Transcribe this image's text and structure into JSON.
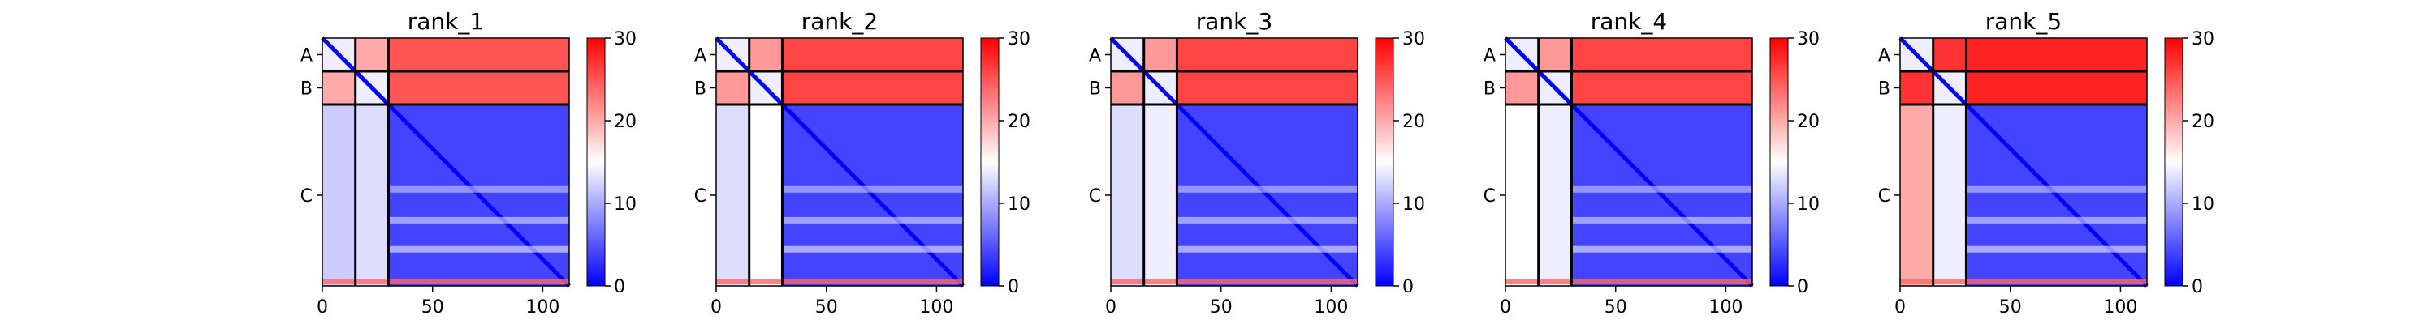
{
  "chart_data": {
    "type": "heatmap",
    "color_scale": {
      "min": 0,
      "max": 30,
      "low": "#0000ff",
      "mid": "#ffffff",
      "high": "#ff0000",
      "ticks": [
        "0",
        "10",
        "20",
        "30"
      ]
    },
    "chain_labels": [
      "A",
      "B",
      "C"
    ],
    "chain_boundaries": [
      0,
      15,
      30,
      112
    ],
    "x_ticks": [
      0,
      50,
      100
    ],
    "x_tick_labels": [
      "0",
      "50",
      "100"
    ],
    "xlim": [
      0,
      112
    ],
    "panels": [
      {
        "title": "rank_1",
        "AB_distance": 20,
        "CA_distance": 12,
        "CB_distance": 13,
        "AC_distance": 25
      },
      {
        "title": "rank_2",
        "AB_distance": 21,
        "CA_distance": 13,
        "CB_distance": 15,
        "AC_distance": 26
      },
      {
        "title": "rank_3",
        "AB_distance": 21,
        "CA_distance": 13,
        "CB_distance": 14,
        "AC_distance": 26
      },
      {
        "title": "rank_4",
        "AB_distance": 21,
        "CA_distance": 15,
        "CB_distance": 14,
        "AC_distance": 26
      },
      {
        "title": "rank_5",
        "AB_distance": 27,
        "CA_distance": 20,
        "CB_distance": 14,
        "AC_distance": 28
      }
    ]
  }
}
